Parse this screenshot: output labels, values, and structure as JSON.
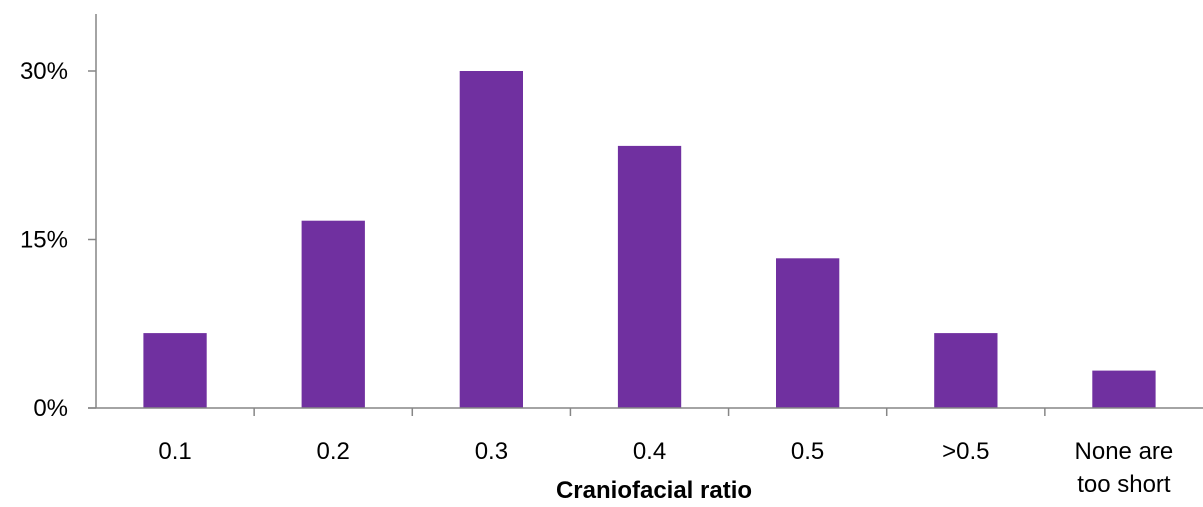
{
  "chart_data": {
    "type": "bar",
    "categories": [
      [
        "0.1"
      ],
      [
        "0.2"
      ],
      [
        "0.3"
      ],
      [
        "0.4"
      ],
      [
        "0.5"
      ],
      [
        ">0.5"
      ],
      [
        "None are",
        "too short"
      ]
    ],
    "values": [
      6.67,
      16.67,
      30.0,
      23.33,
      13.33,
      6.67,
      3.33
    ],
    "ylim": [
      0,
      35
    ],
    "yticks": [
      {
        "value": 0,
        "label": "0%"
      },
      {
        "value": 15,
        "label": "15%"
      },
      {
        "value": 30,
        "label": "30%"
      }
    ],
    "title": "",
    "xlabel": "Craniofacial ratio",
    "ylabel": "",
    "bar_color": "#7030A0",
    "axis_color": "#868686",
    "grid": false,
    "legend": "none"
  }
}
